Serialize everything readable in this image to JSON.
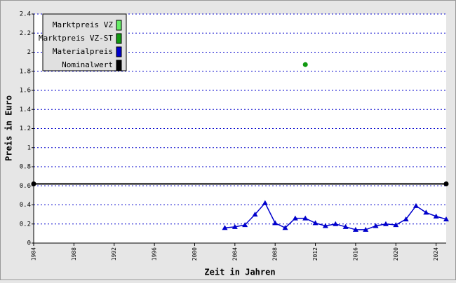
{
  "chart_data": {
    "type": "line",
    "xlabel": "Zeit in Jahren",
    "ylabel": "Preis in Euro",
    "xlim": [
      1984,
      2025
    ],
    "xticks": [
      1984,
      1988,
      1992,
      1996,
      2000,
      2004,
      2008,
      2012,
      2016,
      2020,
      2024
    ],
    "ylim": [
      0,
      2.4
    ],
    "yticks": [
      0,
      0.2,
      0.4,
      0.6,
      0.8,
      1,
      1.2,
      1.4,
      1.6,
      1.8,
      2,
      2.2,
      2.4
    ],
    "grid": true,
    "legend": "upper left",
    "series": [
      {
        "name": "Marktpreis VZ",
        "color": "#66ee66",
        "style": "points",
        "marker": "circle",
        "x": [],
        "values": []
      },
      {
        "name": "Marktpreis VZ-ST",
        "color": "#119911",
        "style": "points",
        "marker": "circle",
        "x": [
          2011
        ],
        "values": [
          1.87
        ]
      },
      {
        "name": "Materialpreis",
        "color": "#0000cc",
        "style": "line",
        "marker": "triangle",
        "x": [
          2003,
          2004,
          2005,
          2006,
          2007,
          2008,
          2009,
          2010,
          2011,
          2012,
          2013,
          2014,
          2015,
          2016,
          2017,
          2018,
          2019,
          2020,
          2021,
          2022,
          2023,
          2024,
          2025
        ],
        "values": [
          0.16,
          0.17,
          0.19,
          0.3,
          0.42,
          0.21,
          0.16,
          0.26,
          0.26,
          0.21,
          0.18,
          0.2,
          0.17,
          0.14,
          0.14,
          0.18,
          0.2,
          0.19,
          0.25,
          0.39,
          0.32,
          0.28,
          0.25
        ]
      },
      {
        "name": "Nominalwert",
        "color": "#000000",
        "style": "line",
        "marker": "circle",
        "x": [
          1984,
          2025
        ],
        "values": [
          0.62,
          0.62
        ]
      }
    ]
  }
}
